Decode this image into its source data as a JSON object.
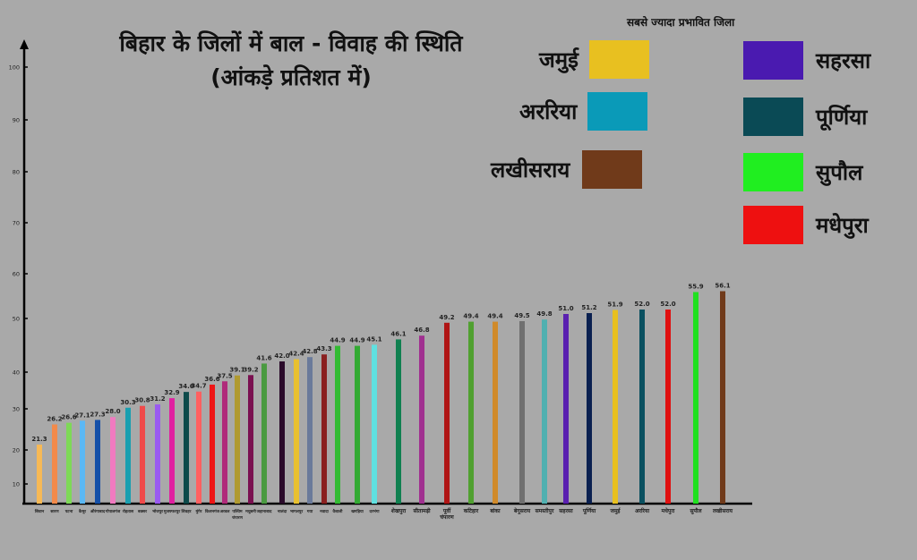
{
  "chart_data": {
    "type": "bar",
    "title": "बिहार के जिलों में बाल - विवाह की स्थिति",
    "subtitle": "(आंकड़े प्रतिशत में)",
    "xlabel": "",
    "ylabel": "",
    "ylim": [
      0,
      100
    ],
    "yticks": [
      10,
      20,
      30,
      40,
      50,
      60,
      70,
      80,
      90,
      100
    ],
    "grid": false,
    "categories": [
      "सिवान",
      "सारण",
      "पटना",
      "कैमूर",
      "औरंगाबाद",
      "गोपालगंज",
      "रोहतास",
      "बक्सर",
      "भोजपुर",
      "मुजफ्फरपुर",
      "शिवहर",
      "मुंगेर",
      "किशनगंज",
      "अरवल",
      "पश्चिम चंपारण",
      "मधुबनी",
      "जहानाबाद",
      "नालंदा",
      "भागलपुर",
      "गया",
      "नवादा",
      "वैशाली",
      "खगड़िया",
      "दरभंगा",
      "शेखपुरा",
      "सीतामढ़ी",
      "पूर्वी चंपारण",
      "कटिहार",
      "बांका",
      "बेगूसराय",
      "समस्तीपुर",
      "सहरसा",
      "पूर्णिया",
      "जमुई",
      "अररिया",
      "मधेपुरा",
      "सुपौल",
      "लखीसराय"
    ],
    "values": [
      21.3,
      26.2,
      26.6,
      27.1,
      27.3,
      28.0,
      30.3,
      30.8,
      31.2,
      32.9,
      34.6,
      34.7,
      36.6,
      37.5,
      39.1,
      39.2,
      41.6,
      42.0,
      42.4,
      42.8,
      43.3,
      44.9,
      44.9,
      45.1,
      46.1,
      46.8,
      49.2,
      49.4,
      49.4,
      49.5,
      49.8,
      51.0,
      51.2,
      51.9,
      52.0,
      52.0,
      55.9,
      56.1
    ],
    "colors": [
      "#f7b955",
      "#f28a4a",
      "#7ed957",
      "#5bb8f5",
      "#1550a8",
      "#f07ac0",
      "#1a9fb0",
      "#f04a4a",
      "#9a5af0",
      "#e020a0",
      "#0d4a4a",
      "#ff6060",
      "#ee1515",
      "#b02a7a",
      "#b09a30",
      "#7a1050",
      "#4a9a40",
      "#2a0a2a",
      "#e8c030",
      "#6a7a9a",
      "#8a2020",
      "#33bb33",
      "#33aa33",
      "#60e0e0",
      "#108050",
      "#a03090",
      "#b01515",
      "#50a030",
      "#d08a2a",
      "#707070",
      "#50b0b0",
      "#5a20b0",
      "#0a2050",
      "#e8c020",
      "#0a5060",
      "#e01010",
      "#20e020",
      "#703a1a"
    ]
  },
  "legend": {
    "title": "सबसे ज्यादा प्रभावित जिला",
    "items": [
      {
        "label": "जमुई",
        "color": "#e8c020"
      },
      {
        "label": "अररिया",
        "color": "#0a9ab8"
      },
      {
        "label": "लखीसराय",
        "color": "#703a1a"
      },
      {
        "label": "सहरसा",
        "color": "#4a1ab0"
      },
      {
        "label": "पूर्णिया",
        "color": "#0a4a55"
      },
      {
        "label": "सुपौल",
        "color": "#20ee20"
      },
      {
        "label": "मधेपुरा",
        "color": "#ee1010"
      }
    ]
  }
}
